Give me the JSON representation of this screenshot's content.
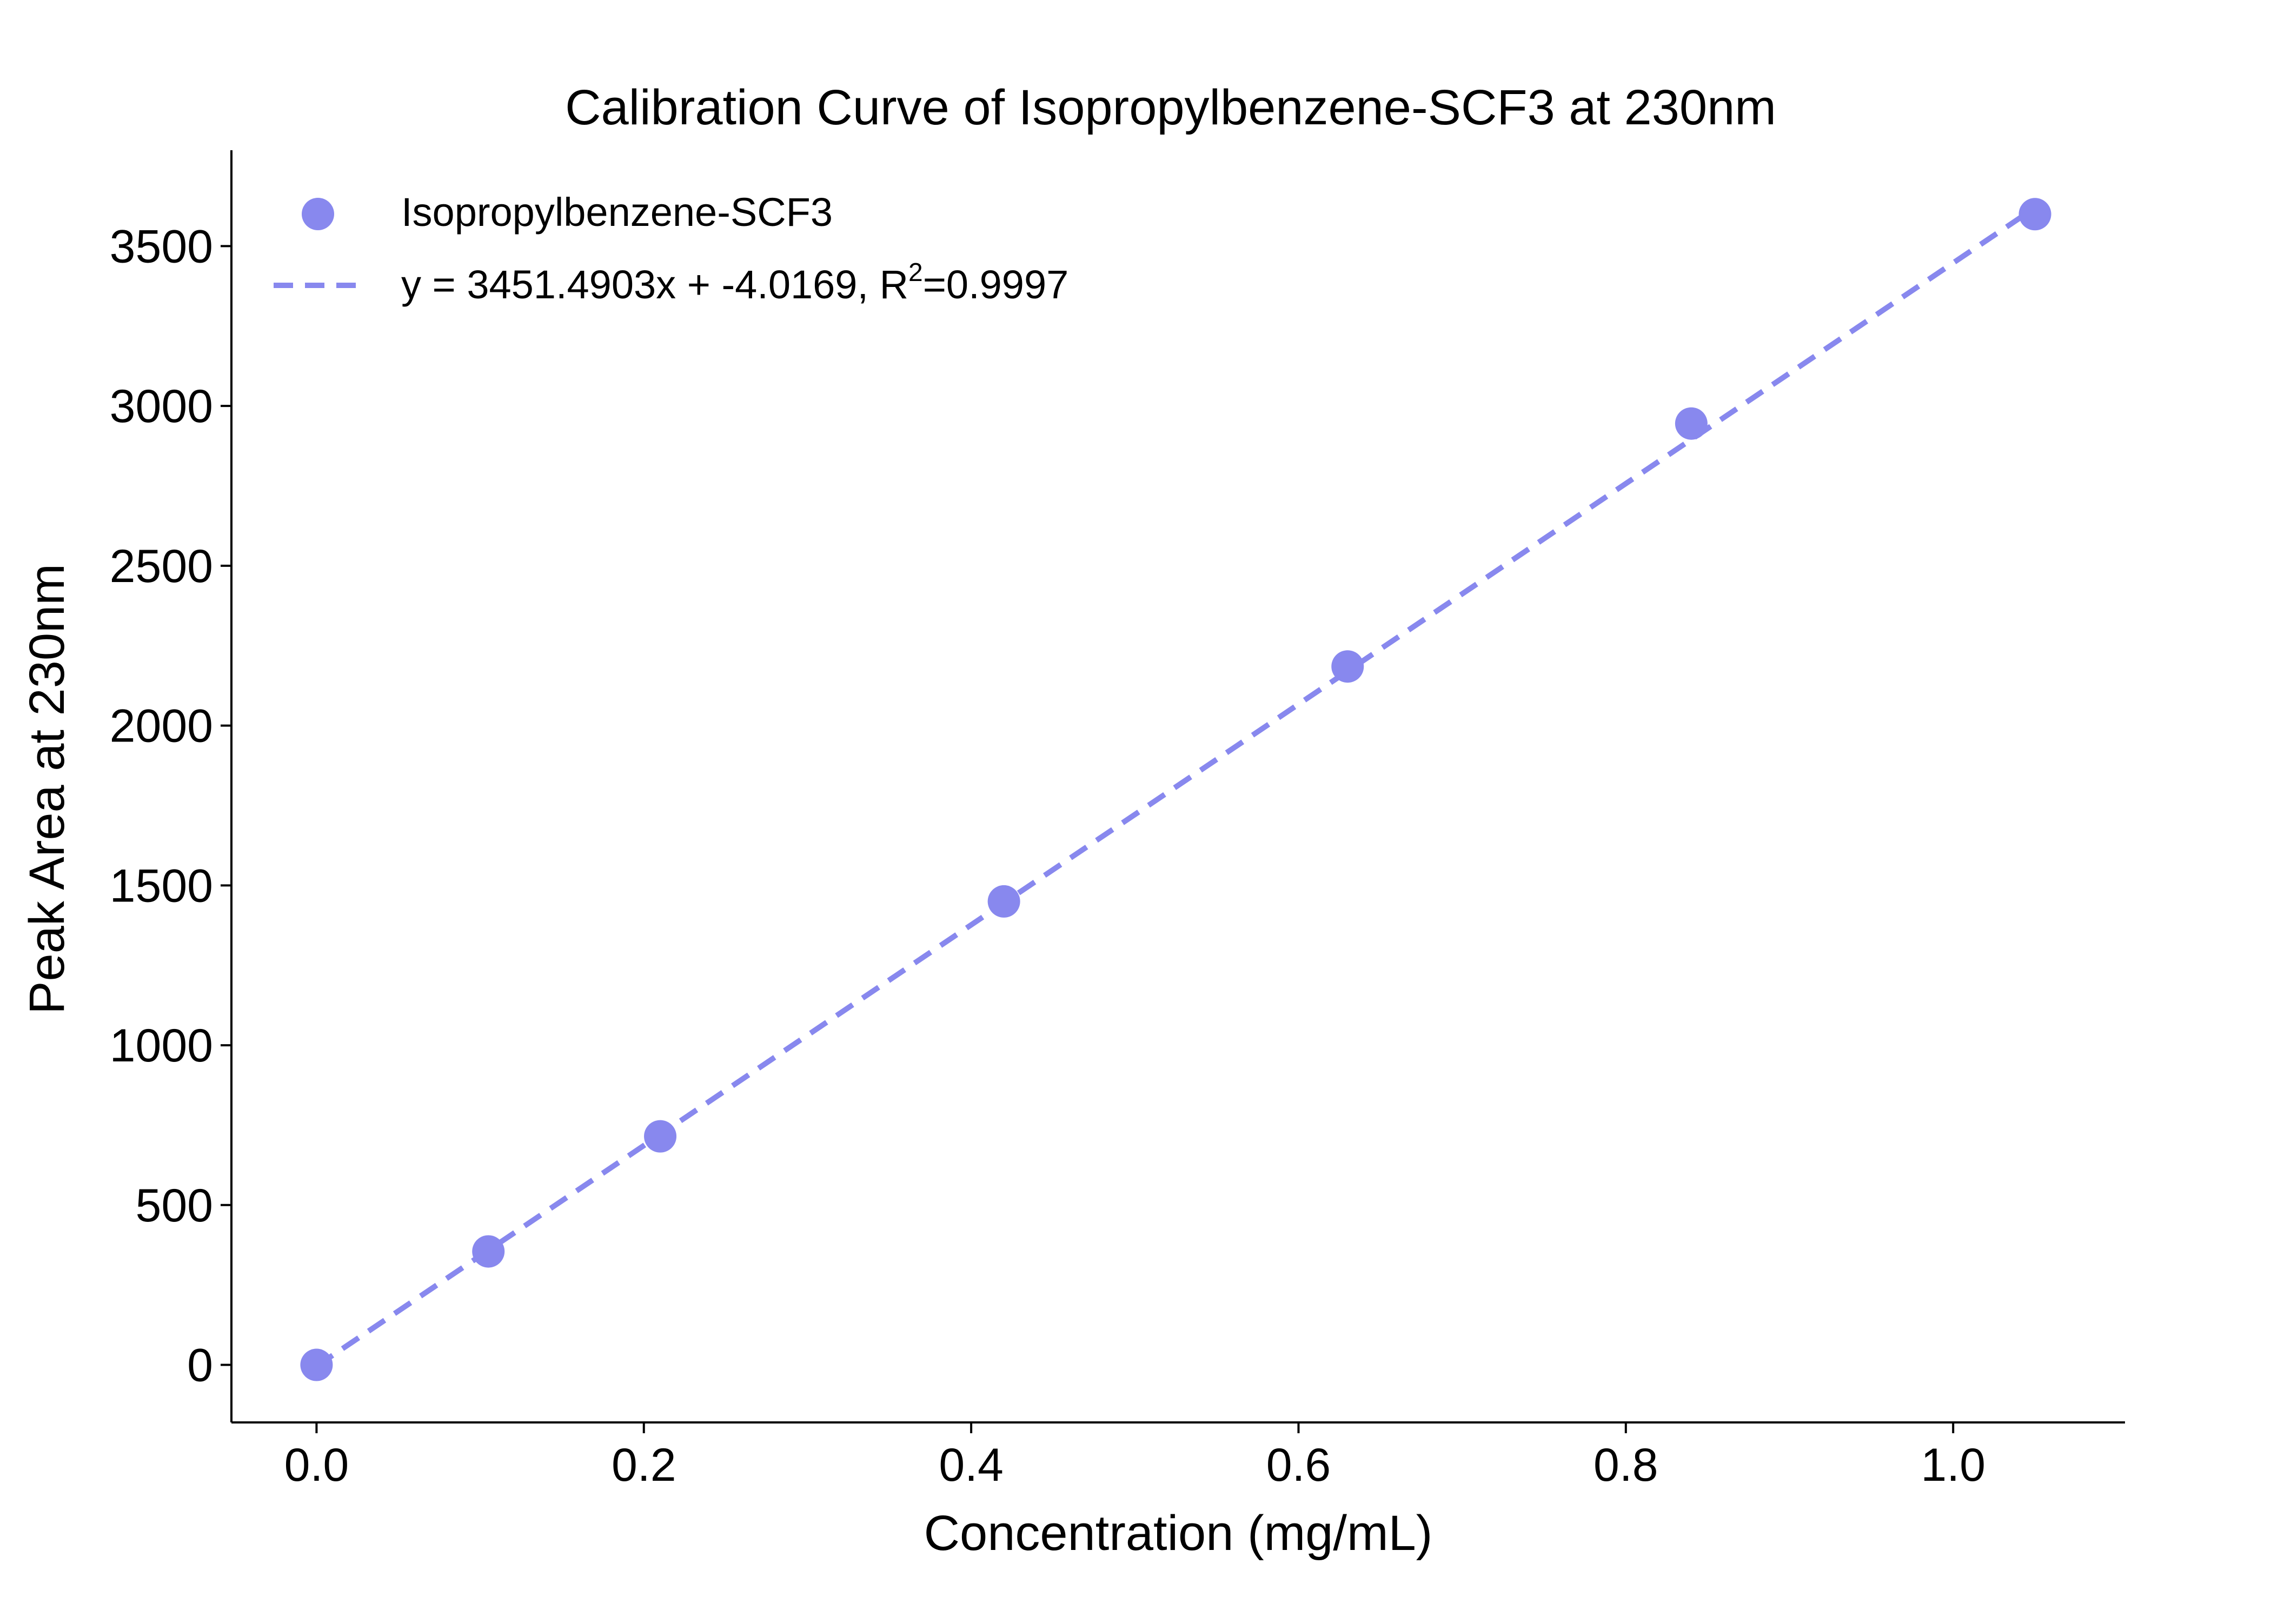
{
  "chart_data": {
    "type": "scatter",
    "title": "Calibration Curve of Isopropylbenzene-SCF3 at 230nm",
    "xlabel": "Concentration (mg/mL)",
    "ylabel": "Peak Area at 230nm",
    "xlim": [
      -0.052,
      1.105
    ],
    "ylim": [
      -180,
      3800
    ],
    "x_ticks": [
      0.0,
      0.2,
      0.4,
      0.6,
      0.8,
      1.0
    ],
    "x_tick_labels": [
      "0.0",
      "0.2",
      "0.4",
      "0.6",
      "0.8",
      "1.0"
    ],
    "y_ticks": [
      0,
      500,
      1000,
      1500,
      2000,
      2500,
      3000,
      3500
    ],
    "y_tick_labels": [
      "0",
      "500",
      "1000",
      "1500",
      "2000",
      "2500",
      "3000",
      "3500"
    ],
    "grid": false,
    "legend_position": "top-left",
    "series": [
      {
        "name": "Isopropylbenzene-SCF3",
        "kind": "scatter",
        "color": "#8888ee",
        "x": [
          0.0,
          0.105,
          0.21,
          0.42,
          0.63,
          0.84,
          1.05
        ],
        "y": [
          0,
          355,
          715,
          1450,
          2185,
          2945,
          3600
        ]
      },
      {
        "name": "y = 3451.4903x + -4.0169, R",
        "name_superscript": "2",
        "name_suffix": "=0.9997",
        "kind": "line",
        "style": "dashed",
        "color": "#8888ee",
        "slope": 3451.4903,
        "intercept": -4.0169,
        "x_range": [
          0.0,
          1.05
        ]
      }
    ]
  }
}
